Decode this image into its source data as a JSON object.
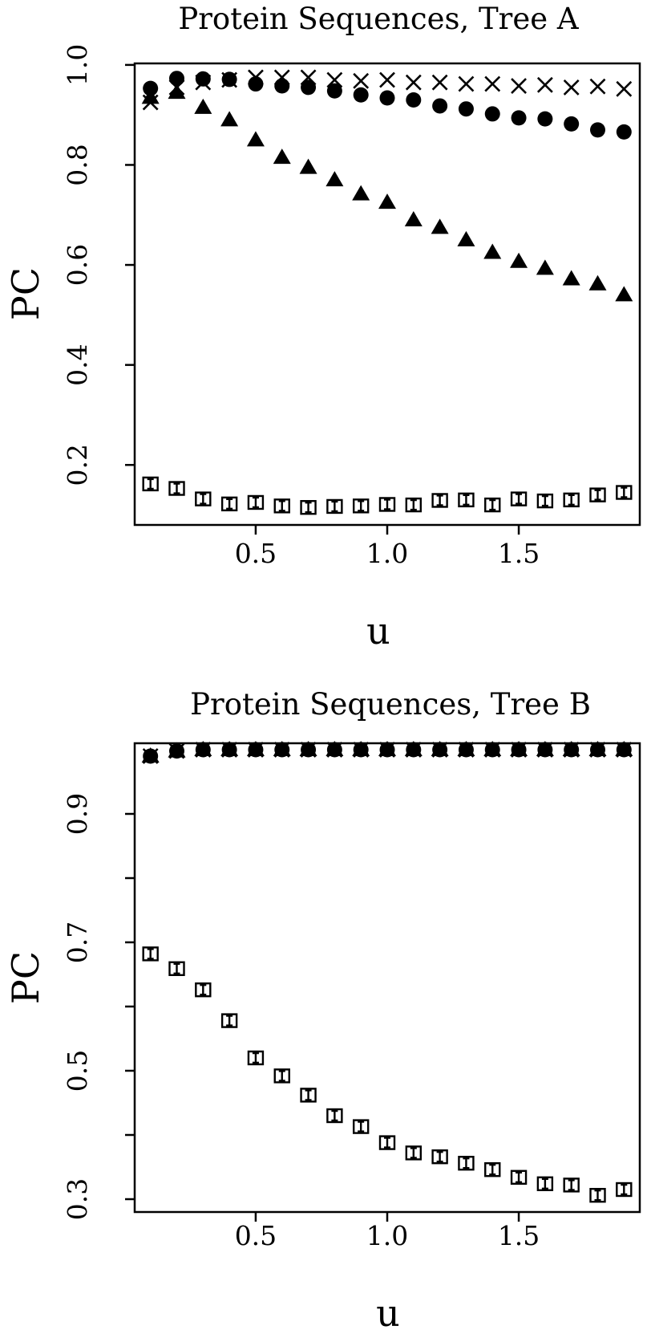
{
  "chart_data": [
    {
      "type": "scatter",
      "title": "Protein Sequences, Tree A",
      "xlabel": "u",
      "ylabel": "PC",
      "xlim": [
        0.04,
        1.96
      ],
      "ylim": [
        0.08,
        1.003
      ],
      "xticks": [
        0.5,
        1.0,
        1.5
      ],
      "xtick_labels": [
        "0.5",
        "1.0",
        "1.5"
      ],
      "yticks": [
        0.2,
        0.4,
        0.6,
        0.8,
        1.0
      ],
      "ytick_labels": [
        "0.2",
        "0.4",
        "0.6",
        "0.8",
        "1.0"
      ],
      "grid": false,
      "legend": "none",
      "x": [
        0.1,
        0.2,
        0.3,
        0.4,
        0.5,
        0.6,
        0.7,
        0.8,
        0.9,
        1.0,
        1.1,
        1.2,
        1.3,
        1.4,
        1.5,
        1.6,
        1.7,
        1.8,
        1.9
      ],
      "series": [
        {
          "marker": "cross",
          "values": [
            0.925,
            0.955,
            0.965,
            0.97,
            0.975,
            0.975,
            0.975,
            0.97,
            0.968,
            0.97,
            0.965,
            0.965,
            0.962,
            0.962,
            0.958,
            0.96,
            0.955,
            0.957,
            0.952
          ]
        },
        {
          "marker": "circle",
          "values": [
            0.953,
            0.973,
            0.972,
            0.971,
            0.962,
            0.958,
            0.955,
            0.948,
            0.94,
            0.934,
            0.93,
            0.918,
            0.912,
            0.902,
            0.894,
            0.892,
            0.882,
            0.87,
            0.866
          ]
        },
        {
          "marker": "triangle",
          "values": [
            0.935,
            0.945,
            0.915,
            0.89,
            0.85,
            0.815,
            0.795,
            0.77,
            0.742,
            0.725,
            0.69,
            0.675,
            0.65,
            0.625,
            0.607,
            0.593,
            0.572,
            0.562,
            0.54
          ]
        },
        {
          "marker": "square-errorbar",
          "values": [
            0.162,
            0.153,
            0.132,
            0.122,
            0.125,
            0.118,
            0.115,
            0.117,
            0.118,
            0.121,
            0.12,
            0.129,
            0.13,
            0.12,
            0.132,
            0.128,
            0.13,
            0.14,
            0.145
          ]
        }
      ]
    },
    {
      "type": "scatter",
      "title": "Protein Sequences, Tree B",
      "xlabel": "u",
      "ylabel": "PC",
      "xlim": [
        0.04,
        1.96
      ],
      "ylim": [
        0.28,
        1.01
      ],
      "xticks": [
        0.5,
        1.0,
        1.5
      ],
      "xtick_labels": [
        "0.5",
        "1.0",
        "1.5"
      ],
      "yticks": [
        0.3,
        0.4,
        0.5,
        0.6,
        0.7,
        0.8,
        0.9
      ],
      "ytick_labels": [
        "0.3",
        "",
        "0.5",
        "",
        "0.7",
        "",
        "0.9"
      ],
      "grid": false,
      "legend": "none",
      "x": [
        0.1,
        0.2,
        0.3,
        0.4,
        0.5,
        0.6,
        0.7,
        0.8,
        0.9,
        1.0,
        1.1,
        1.2,
        1.3,
        1.4,
        1.5,
        1.6,
        1.7,
        1.8,
        1.9
      ],
      "series": [
        {
          "marker": "cross",
          "values": [
            0.99,
            0.998,
            1.0,
            1.0,
            1.0,
            1.0,
            1.0,
            1.0,
            1.0,
            1.0,
            1.0,
            1.0,
            1.0,
            1.0,
            1.0,
            1.0,
            1.0,
            1.0,
            1.0
          ]
        },
        {
          "marker": "circle",
          "values": [
            0.99,
            0.998,
            1.0,
            1.0,
            1.0,
            1.0,
            1.0,
            1.0,
            1.0,
            1.0,
            1.0,
            1.0,
            1.0,
            1.0,
            1.0,
            1.0,
            1.0,
            1.0,
            1.0
          ]
        },
        {
          "marker": "triangle",
          "values": [
            0.99,
            0.998,
            1.0,
            1.0,
            1.0,
            1.0,
            1.0,
            1.0,
            1.0,
            1.0,
            1.0,
            1.0,
            1.0,
            1.0,
            1.0,
            1.0,
            1.0,
            1.0,
            1.0
          ]
        },
        {
          "marker": "square-errorbar",
          "values": [
            0.682,
            0.659,
            0.626,
            0.578,
            0.52,
            0.492,
            0.462,
            0.43,
            0.413,
            0.388,
            0.372,
            0.366,
            0.356,
            0.346,
            0.334,
            0.324,
            0.322,
            0.306,
            0.315
          ]
        }
      ]
    }
  ]
}
